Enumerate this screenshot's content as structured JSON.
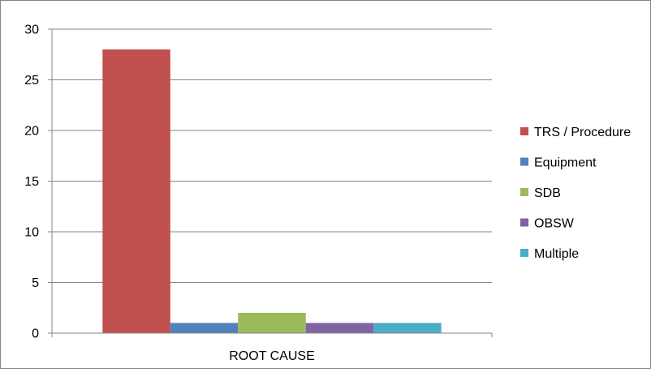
{
  "chart_data": {
    "type": "bar",
    "categories": [
      "ROOT CAUSE"
    ],
    "series": [
      {
        "name": "TRS / Procedure",
        "values": [
          28
        ],
        "color": "#C0504D"
      },
      {
        "name": "Equipment",
        "values": [
          1
        ],
        "color": "#4F81BD"
      },
      {
        "name": "SDB",
        "values": [
          2
        ],
        "color": "#9BBB59"
      },
      {
        "name": "OBSW",
        "values": [
          1
        ],
        "color": "#8064A2"
      },
      {
        "name": "Multiple",
        "values": [
          1
        ],
        "color": "#4BACC6"
      }
    ],
    "ylim": [
      0,
      30
    ],
    "yticks": [
      0,
      5,
      10,
      15,
      20,
      25,
      30
    ],
    "grid": true,
    "legend_position": "right",
    "title": "",
    "xlabel": "",
    "ylabel": ""
  }
}
